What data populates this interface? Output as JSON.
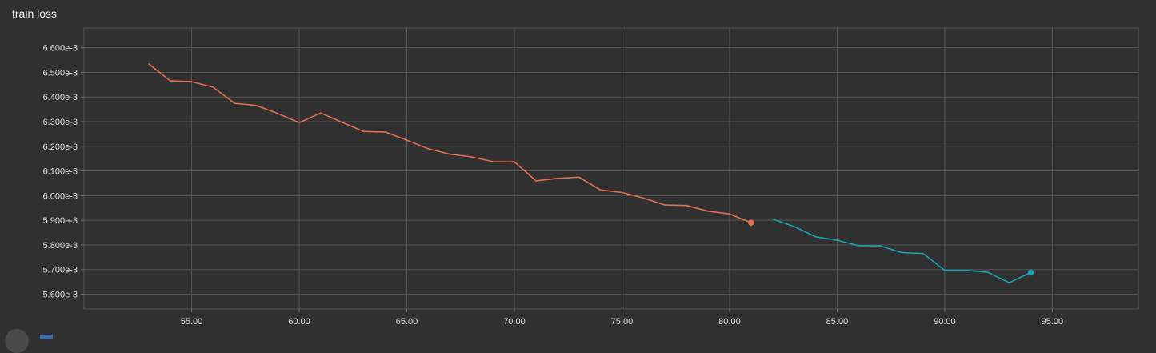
{
  "title": "train loss",
  "chart_data": {
    "type": "line",
    "title": "train loss",
    "xlabel": "",
    "ylabel": "",
    "xlim": [
      50.0,
      99.0
    ],
    "ylim": [
      5.54,
      6.68
    ],
    "x_ticks": [
      55,
      60,
      65,
      70,
      75,
      80,
      85,
      90,
      95
    ],
    "x_tick_labels": [
      "55.00",
      "60.00",
      "65.00",
      "70.00",
      "75.00",
      "80.00",
      "85.00",
      "90.00",
      "95.00"
    ],
    "y_ticks": [
      5.6,
      5.7,
      5.8,
      5.9,
      6.0,
      6.1,
      6.2,
      6.3,
      6.4,
      6.5,
      6.6
    ],
    "y_tick_labels": [
      "5.600e-3",
      "5.700e-3",
      "5.800e-3",
      "5.900e-3",
      "6.000e-3",
      "6.100e-3",
      "6.200e-3",
      "6.300e-3",
      "6.400e-3",
      "6.500e-3",
      "6.600e-3"
    ],
    "grid": true,
    "series": [
      {
        "color": "#e07050",
        "x": [
          53,
          54,
          55,
          56,
          57,
          58,
          59,
          60,
          61,
          62,
          63,
          64,
          65,
          66,
          67,
          68,
          69,
          70,
          71,
          72,
          73,
          74,
          75,
          76,
          77,
          78,
          79,
          80,
          81
        ],
        "y": [
          6.535,
          6.466,
          6.462,
          6.44,
          6.374,
          6.366,
          6.333,
          6.296,
          6.335,
          6.297,
          6.26,
          6.258,
          6.225,
          6.19,
          6.168,
          6.157,
          6.138,
          6.137,
          6.06,
          6.07,
          6.075,
          6.023,
          6.013,
          5.99,
          5.962,
          5.96,
          5.937,
          5.926,
          5.89
        ]
      },
      {
        "color": "#1aa1b4",
        "x": [
          82,
          83,
          84,
          85,
          86,
          87,
          88,
          89,
          90,
          91,
          92,
          93,
          94
        ],
        "y": [
          5.905,
          5.875,
          5.833,
          5.819,
          5.797,
          5.796,
          5.769,
          5.765,
          5.697,
          5.697,
          5.689,
          5.647,
          5.688
        ]
      }
    ]
  }
}
